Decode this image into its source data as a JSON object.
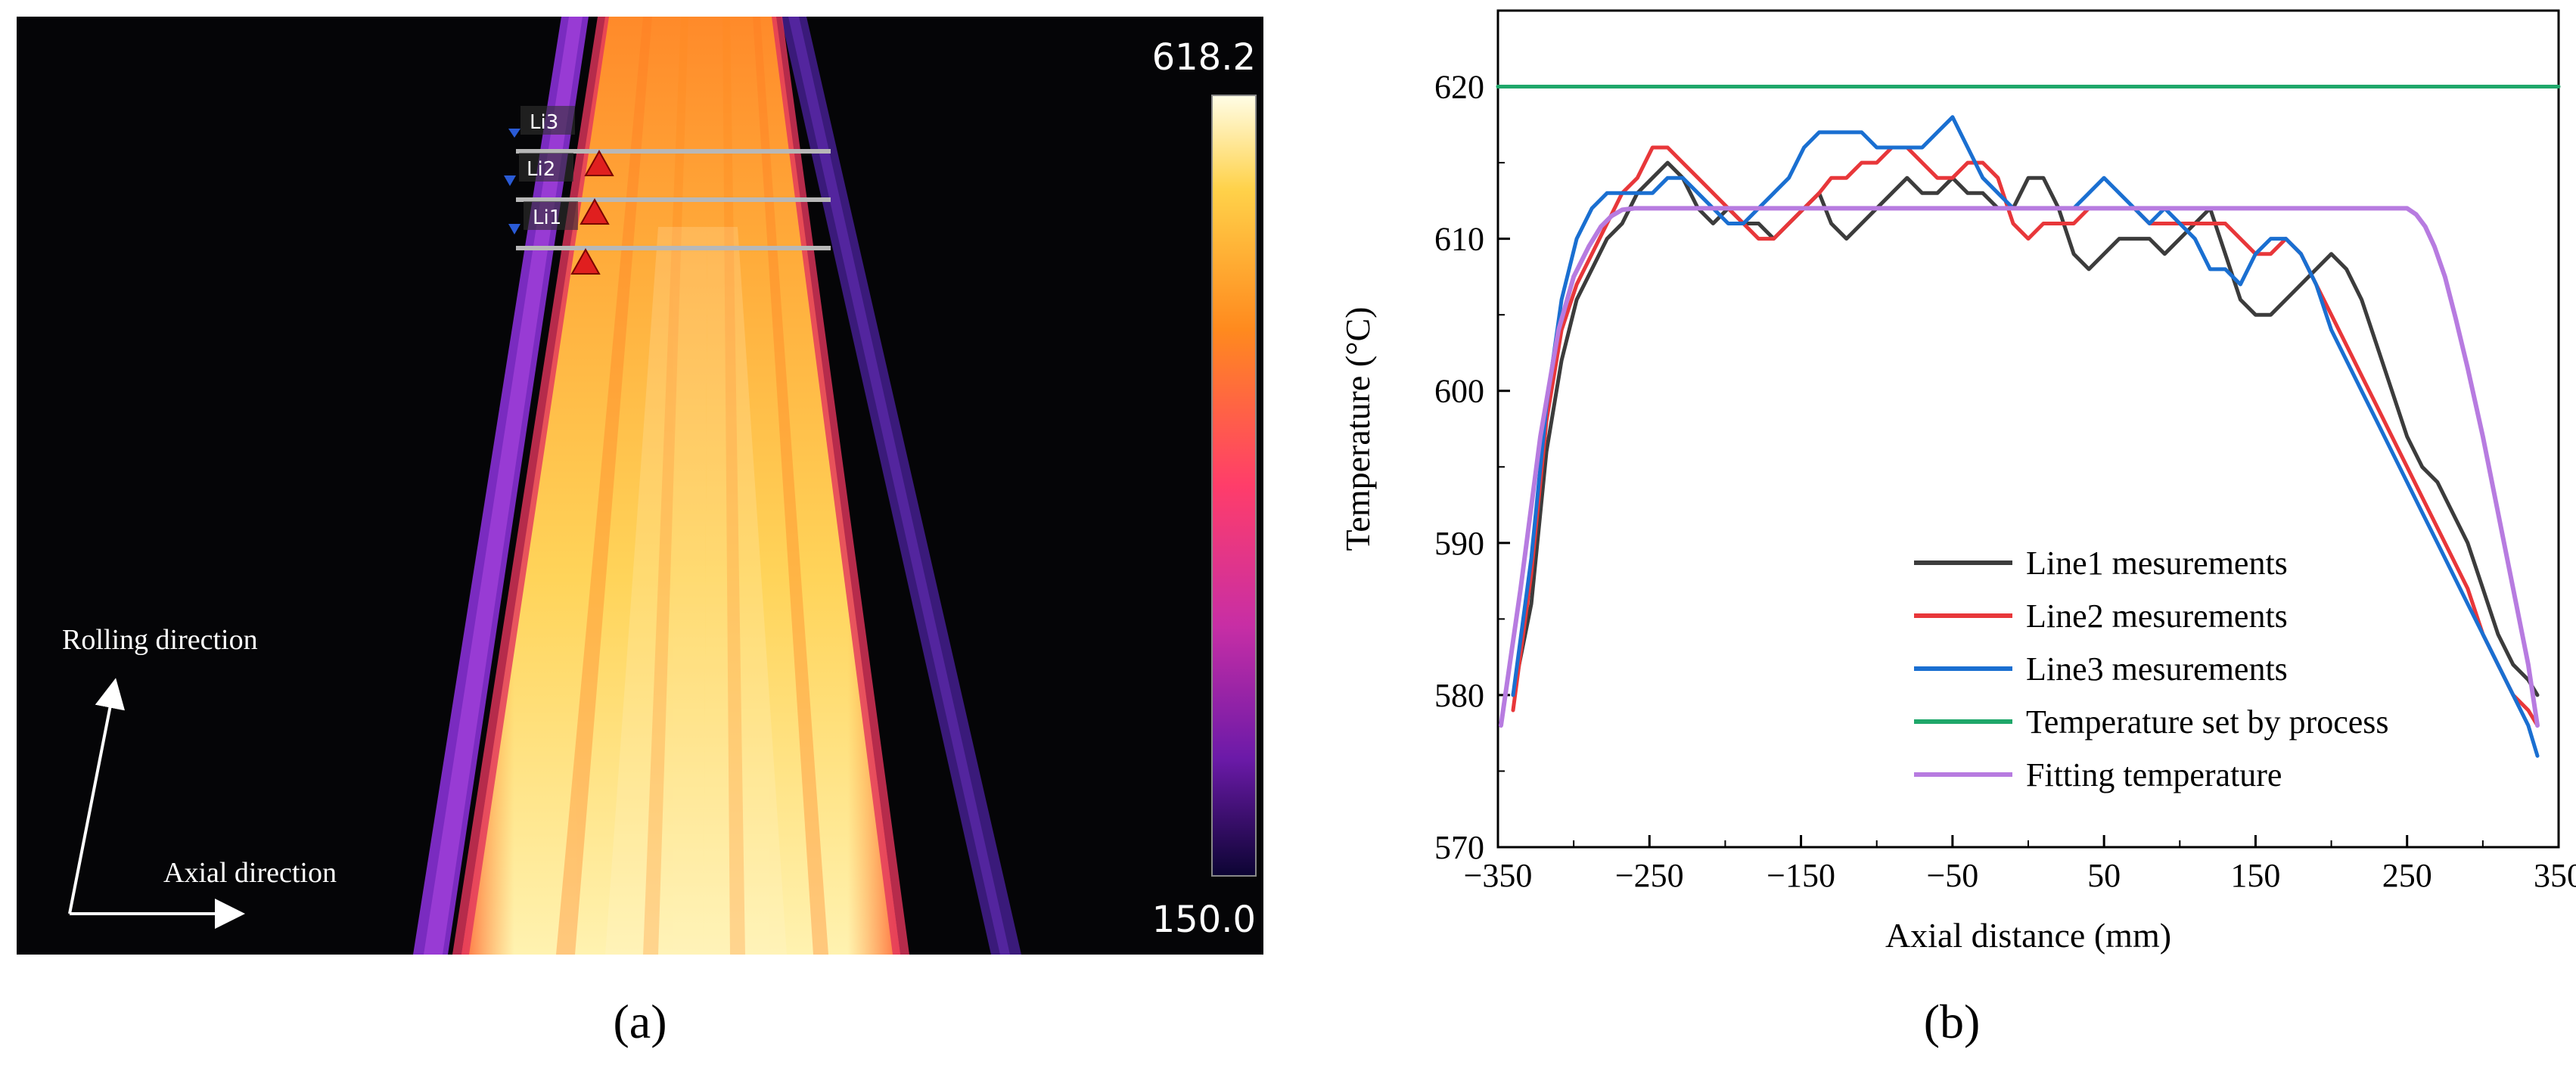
{
  "panel_a": {
    "label": "(a)",
    "colorbar_max": "618.2",
    "colorbar_min": "150.0",
    "lines": [
      {
        "name": "Li3"
      },
      {
        "name": "Li2"
      },
      {
        "name": "Li1"
      }
    ],
    "rolling_direction": "Rolling direction",
    "axial_direction": "Axial direction"
  },
  "panel_b": {
    "label": "(b)"
  },
  "chart_data": {
    "type": "line",
    "xlabel": "Axial distance (mm)",
    "ylabel": "Temperature (°C)",
    "xlim": [
      -350,
      350
    ],
    "ylim": [
      570,
      625
    ],
    "xticks": [
      -350,
      -250,
      -150,
      -50,
      50,
      150,
      250,
      350
    ],
    "xtick_labels": [
      "−350",
      "−250",
      "−150",
      "−50",
      "50",
      "150",
      "250",
      "350"
    ],
    "yticks": [
      570,
      580,
      590,
      600,
      610,
      620
    ],
    "ytick_labels": [
      "570",
      "580",
      "590",
      "600",
      "610",
      "620"
    ],
    "legend_position": "lower-right",
    "series": [
      {
        "name": "Line1 mesurements",
        "color": "#3c3c3c",
        "x": [
          -340,
          -328,
          -318,
          -308,
          -298,
          -288,
          -278,
          -268,
          -258,
          -248,
          -238,
          -228,
          -218,
          -208,
          -198,
          -188,
          -178,
          -168,
          -158,
          -148,
          -138,
          -130,
          -120,
          -110,
          -100,
          -90,
          -80,
          -70,
          -60,
          -50,
          -40,
          -30,
          -20,
          -10,
          0,
          10,
          20,
          30,
          40,
          50,
          60,
          70,
          80,
          90,
          100,
          110,
          120,
          130,
          140,
          150,
          160,
          170,
          180,
          190,
          200,
          210,
          220,
          230,
          240,
          250,
          260,
          270,
          280,
          290,
          300,
          310,
          320,
          330,
          336
        ],
        "values": [
          580,
          586,
          596,
          602,
          606,
          608,
          610,
          611,
          613,
          614,
          615,
          614,
          612,
          611,
          612,
          611,
          611,
          610,
          611,
          612,
          613,
          611,
          610,
          611,
          612,
          613,
          614,
          613,
          613,
          614,
          613,
          613,
          612,
          612,
          614,
          614,
          612,
          609,
          608,
          609,
          610,
          610,
          610,
          609,
          610,
          611,
          612,
          609,
          606,
          605,
          605,
          606,
          607,
          608,
          609,
          608,
          606,
          603,
          600,
          597,
          595,
          594,
          592,
          590,
          587,
          584,
          582,
          581,
          580
        ]
      },
      {
        "name": "Line2 mesurements",
        "color": "#e8373a",
        "x": [
          -340,
          -328,
          -318,
          -308,
          -298,
          -288,
          -278,
          -268,
          -258,
          -248,
          -238,
          -228,
          -218,
          -208,
          -198,
          -188,
          -178,
          -168,
          -158,
          -148,
          -138,
          -130,
          -120,
          -110,
          -100,
          -90,
          -80,
          -70,
          -60,
          -50,
          -40,
          -30,
          -20,
          -10,
          0,
          10,
          20,
          30,
          40,
          50,
          60,
          70,
          80,
          90,
          100,
          110,
          120,
          130,
          140,
          150,
          160,
          170,
          180,
          190,
          200,
          210,
          220,
          230,
          240,
          250,
          260,
          270,
          280,
          290,
          300,
          310,
          320,
          330,
          336
        ],
        "values": [
          579,
          588,
          598,
          604,
          607,
          609,
          611,
          613,
          614,
          616,
          616,
          615,
          614,
          613,
          612,
          611,
          610,
          610,
          611,
          612,
          613,
          614,
          614,
          615,
          615,
          616,
          616,
          615,
          614,
          614,
          615,
          615,
          614,
          611,
          610,
          611,
          611,
          611,
          612,
          612,
          612,
          612,
          611,
          611,
          611,
          611,
          611,
          611,
          610,
          609,
          609,
          610,
          609,
          607,
          605,
          603,
          601,
          599,
          597,
          595,
          593,
          591,
          589,
          587,
          584,
          582,
          580,
          579,
          578
        ]
      },
      {
        "name": "Line3 mesurements",
        "color": "#1a6fd1",
        "x": [
          -340,
          -328,
          -318,
          -308,
          -298,
          -288,
          -278,
          -268,
          -258,
          -248,
          -238,
          -228,
          -218,
          -208,
          -198,
          -188,
          -178,
          -168,
          -158,
          -148,
          -138,
          -130,
          -120,
          -110,
          -100,
          -90,
          -80,
          -70,
          -60,
          -50,
          -40,
          -30,
          -20,
          -10,
          0,
          10,
          20,
          30,
          40,
          50,
          60,
          70,
          80,
          90,
          100,
          110,
          120,
          130,
          140,
          150,
          160,
          170,
          180,
          190,
          200,
          210,
          220,
          230,
          240,
          250,
          260,
          270,
          280,
          290,
          300,
          310,
          320,
          330,
          336
        ],
        "values": [
          580,
          589,
          599,
          606,
          610,
          612,
          613,
          613,
          613,
          613,
          614,
          614,
          613,
          612,
          611,
          611,
          612,
          613,
          614,
          616,
          617,
          617,
          617,
          617,
          616,
          616,
          616,
          616,
          617,
          618,
          616,
          614,
          613,
          612,
          612,
          612,
          612,
          612,
          613,
          614,
          613,
          612,
          611,
          612,
          611,
          610,
          608,
          608,
          607,
          609,
          610,
          610,
          609,
          607,
          604,
          602,
          600,
          598,
          596,
          594,
          592,
          590,
          588,
          586,
          584,
          582,
          580,
          578,
          576
        ]
      },
      {
        "name": "Temperature set by process",
        "color": "#1fa76a",
        "x": [
          -350,
          350
        ],
        "values": [
          620,
          620
        ]
      },
      {
        "name": "Fitting temperature",
        "color": "#b77be0",
        "x": [
          -348,
          -335,
          -322,
          -310,
          -300,
          -290,
          -282,
          -275,
          -268,
          -260,
          250,
          256,
          262,
          268,
          275,
          282,
          290,
          300,
          310,
          320,
          330,
          336
        ],
        "values": [
          578,
          587,
          597,
          604,
          607.5,
          609.5,
          610.8,
          611.5,
          611.9,
          612,
          612,
          611.6,
          610.8,
          609.5,
          607.5,
          604.8,
          601.5,
          597,
          592,
          587,
          582,
          578
        ]
      }
    ]
  }
}
